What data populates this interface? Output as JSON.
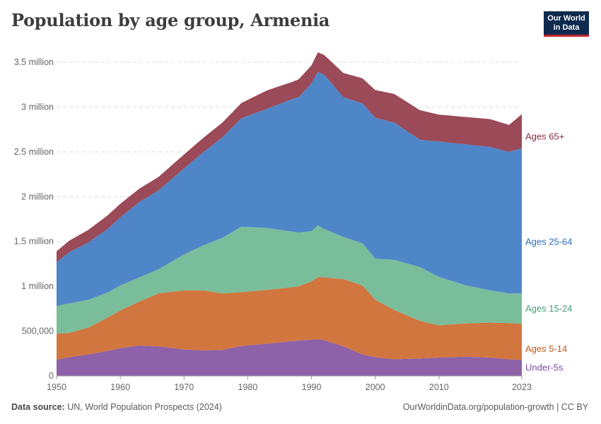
{
  "header": {
    "title": "Population by age group, Armenia",
    "logo_line1": "Our World",
    "logo_line2": "in Data"
  },
  "footer": {
    "source_label": "Data source:",
    "source_text": "UN, World Population Prospects (2024)",
    "url": "OurWorldinData.org/population-growth | CC BY"
  },
  "colors": {
    "Under-5s": "#8d62a8",
    "Ages 5-14": "#d1763e",
    "Ages 15-24": "#7abd9b",
    "Ages 25-64": "#4f86c8",
    "Ages 65+": "#9b4a57",
    "label_Under-5s": "#7b4ba0",
    "label_Ages 5-14": "#c65a1e",
    "label_Ages 15-24": "#4a9d75",
    "label_Ages 25-64": "#2f6cb8",
    "label_Ages 65+": "#8a2c3d"
  },
  "chart_data": {
    "type": "area",
    "stacked": true,
    "title": "Population by age group, Armenia",
    "xlim": [
      1950,
      2023
    ],
    "ylim": [
      0,
      3500000
    ],
    "x_ticks": [
      1950,
      1960,
      1970,
      1980,
      1990,
      2000,
      2010,
      2023
    ],
    "x_tick_labels": [
      "1950",
      "1960",
      "1970",
      "1980",
      "1990",
      "2000",
      "2010",
      "2023"
    ],
    "y_ticks": [
      0,
      500000,
      1000000,
      1500000,
      2000000,
      2500000,
      3000000,
      3500000
    ],
    "y_tick_labels": [
      "0",
      "500,000",
      "1 million",
      "1.5 million",
      "2 million",
      "2.5 million",
      "3 million",
      "3.5 million"
    ],
    "grid": "horizontal",
    "legend_placement": "right, inline at series end",
    "x": [
      1950,
      1952,
      1955,
      1958,
      1960,
      1963,
      1966,
      1970,
      1973,
      1976,
      1979,
      1983,
      1987,
      1988,
      1990,
      1991,
      1992,
      1995,
      1998,
      2000,
      2003,
      2007,
      2010,
      2014,
      2018,
      2021,
      2023
    ],
    "series": [
      {
        "name": "Under-5s",
        "values": [
          180000,
          210000,
          240000,
          280000,
          310000,
          340000,
          330000,
          295000,
          285000,
          290000,
          335000,
          360000,
          390000,
          395000,
          405000,
          410000,
          400000,
          330000,
          240000,
          210000,
          185000,
          195000,
          205000,
          215000,
          205000,
          185000,
          180000
        ]
      },
      {
        "name": "Ages 5-14",
        "values": [
          290000,
          270000,
          300000,
          370000,
          420000,
          490000,
          590000,
          660000,
          670000,
          630000,
          600000,
          600000,
          600000,
          605000,
          650000,
          690000,
          700000,
          750000,
          770000,
          640000,
          550000,
          420000,
          360000,
          370000,
          390000,
          405000,
          400000
        ]
      },
      {
        "name": "Ages 15-24",
        "values": [
          310000,
          330000,
          310000,
          280000,
          280000,
          270000,
          270000,
          400000,
          500000,
          620000,
          730000,
          690000,
          620000,
          600000,
          560000,
          580000,
          540000,
          470000,
          470000,
          460000,
          560000,
          600000,
          540000,
          430000,
          360000,
          330000,
          340000
        ]
      },
      {
        "name": "Ages 25-64",
        "values": [
          490000,
          570000,
          640000,
          710000,
          760000,
          840000,
          880000,
          960000,
          1040000,
          1120000,
          1210000,
          1330000,
          1480000,
          1510000,
          1650000,
          1710000,
          1720000,
          1560000,
          1560000,
          1570000,
          1530000,
          1420000,
          1510000,
          1570000,
          1600000,
          1580000,
          1620000
        ]
      },
      {
        "name": "Ages 65+",
        "values": [
          120000,
          130000,
          140000,
          150000,
          150000,
          150000,
          150000,
          155000,
          160000,
          165000,
          170000,
          205000,
          190000,
          200000,
          200000,
          220000,
          220000,
          270000,
          280000,
          310000,
          320000,
          330000,
          300000,
          305000,
          310000,
          300000,
          380000
        ]
      }
    ]
  }
}
